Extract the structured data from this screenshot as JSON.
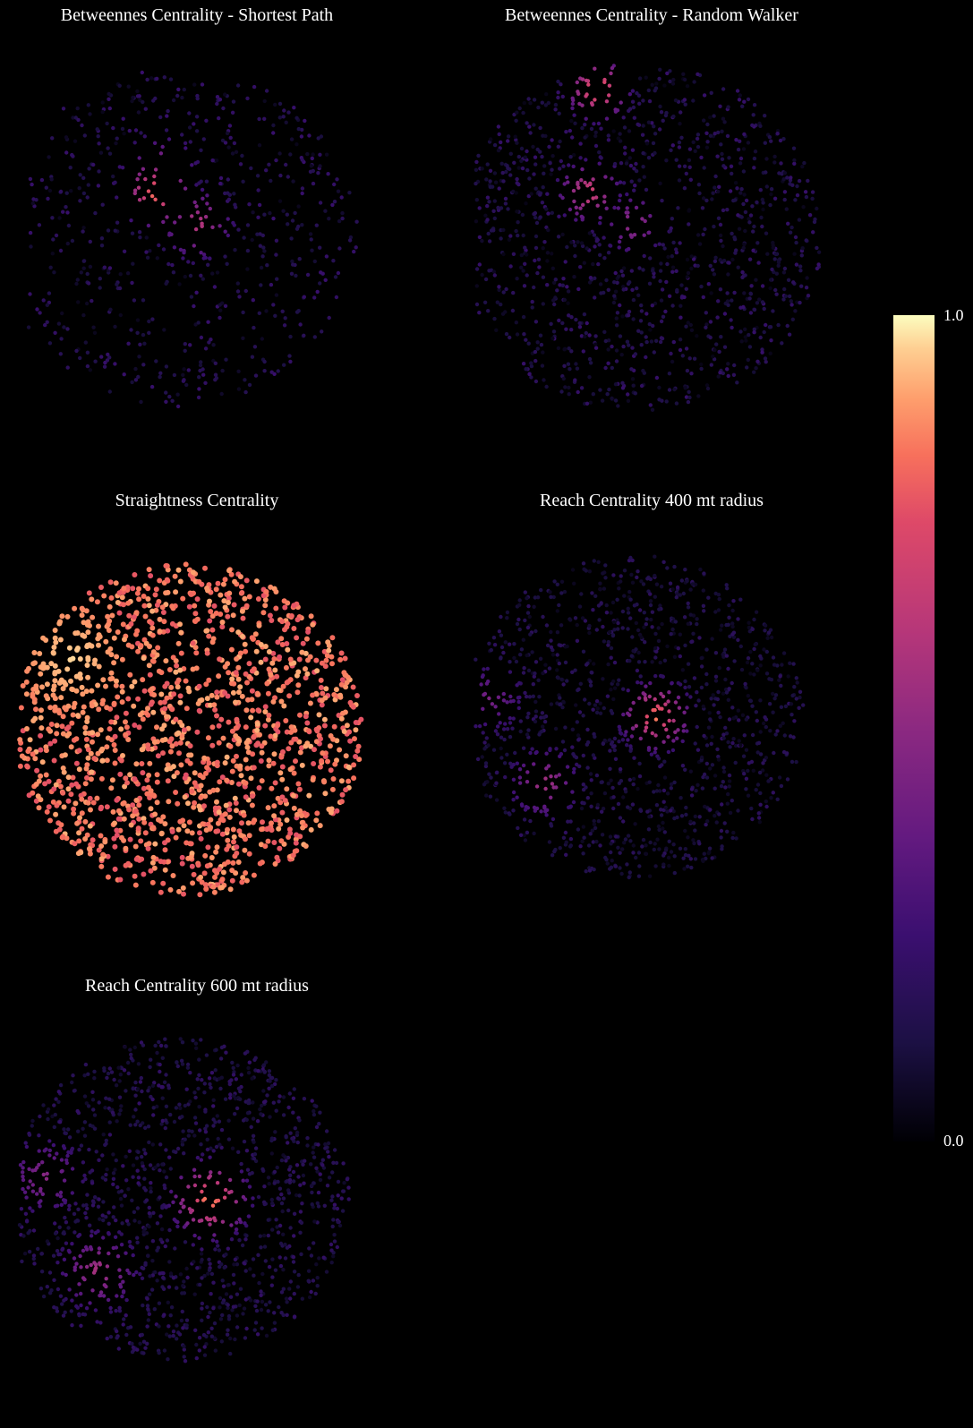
{
  "chart_data": [
    {
      "type": "scatter",
      "title": "Betweennes Centrality - Shortest Path",
      "pattern": "network-lines",
      "intensity": 0.25,
      "hotspots": "few"
    },
    {
      "type": "scatter",
      "title": "Betweennes Centrality - Random Walker",
      "pattern": "dense-grid",
      "intensity": 0.25,
      "hotspots": "few"
    },
    {
      "type": "scatter",
      "title": "Straightness Centrality",
      "pattern": "dense-grid",
      "intensity": 0.85,
      "hotspots": "broad"
    },
    {
      "type": "scatter",
      "title": "Reach Centrality 400 mt radius",
      "pattern": "dense-grid",
      "intensity": 0.2,
      "hotspots": "central"
    },
    {
      "type": "scatter",
      "title": "Reach Centrality 600 mt radius",
      "pattern": "dense-grid",
      "intensity": 0.25,
      "hotspots": "central"
    }
  ],
  "colorbar": {
    "max_label": "1.0",
    "min_label": "0.0",
    "colormap": "magma"
  }
}
